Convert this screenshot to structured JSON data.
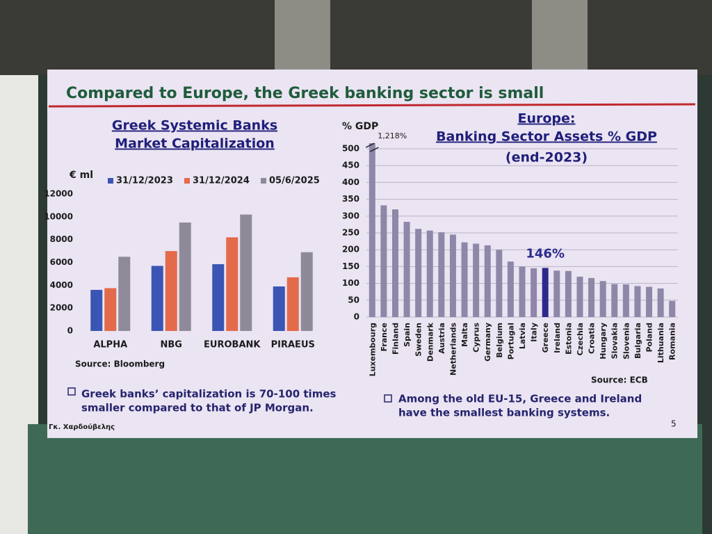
{
  "slide": {
    "title": "Compared to Europe, the Greek banking sector is small",
    "page": "5",
    "author": "Γκ. Χαρδούβελης"
  },
  "chart_data": [
    {
      "type": "bar",
      "title": [
        "Greek Systemic Banks",
        "Market Capitalization"
      ],
      "ylabel": "€ ml",
      "categories": [
        "ALPHA",
        "NBG",
        "EUROBANK",
        "PIRAEUS"
      ],
      "series": [
        {
          "name": "31/12/2023",
          "color": "#3a55b4",
          "values": [
            3600,
            5700,
            5850,
            3900
          ]
        },
        {
          "name": "31/12/2024",
          "color": "#e36a4a",
          "values": [
            3750,
            7000,
            8200,
            4700
          ]
        },
        {
          "name": "05/6/2025",
          "color": "#8f8a99",
          "values": [
            6500,
            9500,
            10200,
            6900
          ]
        }
      ],
      "ylim": [
        0,
        12000
      ],
      "yticks": [
        0,
        2000,
        4000,
        6000,
        8000,
        10000,
        12000
      ],
      "grid": false,
      "source": "Source: Bloomberg",
      "note": [
        "Greek banks’ capitalization is 70-100 times",
        "smaller compared to that of JP Morgan."
      ]
    },
    {
      "type": "bar",
      "title": [
        "Europe:",
        "Banking Sector Assets % GDP"
      ],
      "subtitle": "(end-2023)",
      "ylabel": "% GDP",
      "categories": [
        "Luxembourg",
        "France",
        "Finland",
        "Spain",
        "Sweden",
        "Denmark",
        "Austria",
        "Netherlands",
        "Malta",
        "Cyprus",
        "Germany",
        "Belgium",
        "Portugal",
        "Latvia",
        "Italy",
        "Greece",
        "Ireland",
        "Estonia",
        "Czechia",
        "Croatia",
        "Hungary",
        "Slovakia",
        "Slovenia",
        "Bulgaria",
        "Poland",
        "Lithuania",
        "Romania"
      ],
      "values": [
        1218,
        332,
        320,
        283,
        262,
        257,
        252,
        245,
        222,
        218,
        213,
        200,
        165,
        150,
        145,
        146,
        138,
        137,
        120,
        116,
        107,
        98,
        97,
        92,
        90,
        85,
        48
      ],
      "value_labels": [
        "1,218%",
        null,
        null,
        null,
        null,
        null,
        null,
        null,
        null,
        null,
        null,
        null,
        null,
        null,
        null,
        "146%",
        null,
        null,
        null,
        null,
        null,
        null,
        null,
        null,
        null,
        null,
        null
      ],
      "colors": [
        "#8f87a8",
        "#8f87a8",
        "#8f87a8",
        "#8f87a8",
        "#8f87a8",
        "#8f87a8",
        "#8f87a8",
        "#8f87a8",
        "#8f87a8",
        "#8f87a8",
        "#8f87a8",
        "#8f87a8",
        "#8f87a8",
        "#8f87a8",
        "#8f87a8",
        "#2b2a8c",
        "#8f87a8",
        "#8f87a8",
        "#8f87a8",
        "#8f87a8",
        "#8f87a8",
        "#8f87a8",
        "#8f87a8",
        "#8f87a8",
        "#8f87a8",
        "#8f87a8",
        "#8f87a8"
      ],
      "ylim": [
        0,
        500
      ],
      "yticks": [
        0,
        50,
        100,
        150,
        200,
        250,
        300,
        350,
        400,
        450,
        500
      ],
      "grid": true,
      "source": "Source: ECB",
      "note": [
        "Among the old EU-15, Greece and Ireland",
        "have the smallest banking systems."
      ]
    }
  ]
}
